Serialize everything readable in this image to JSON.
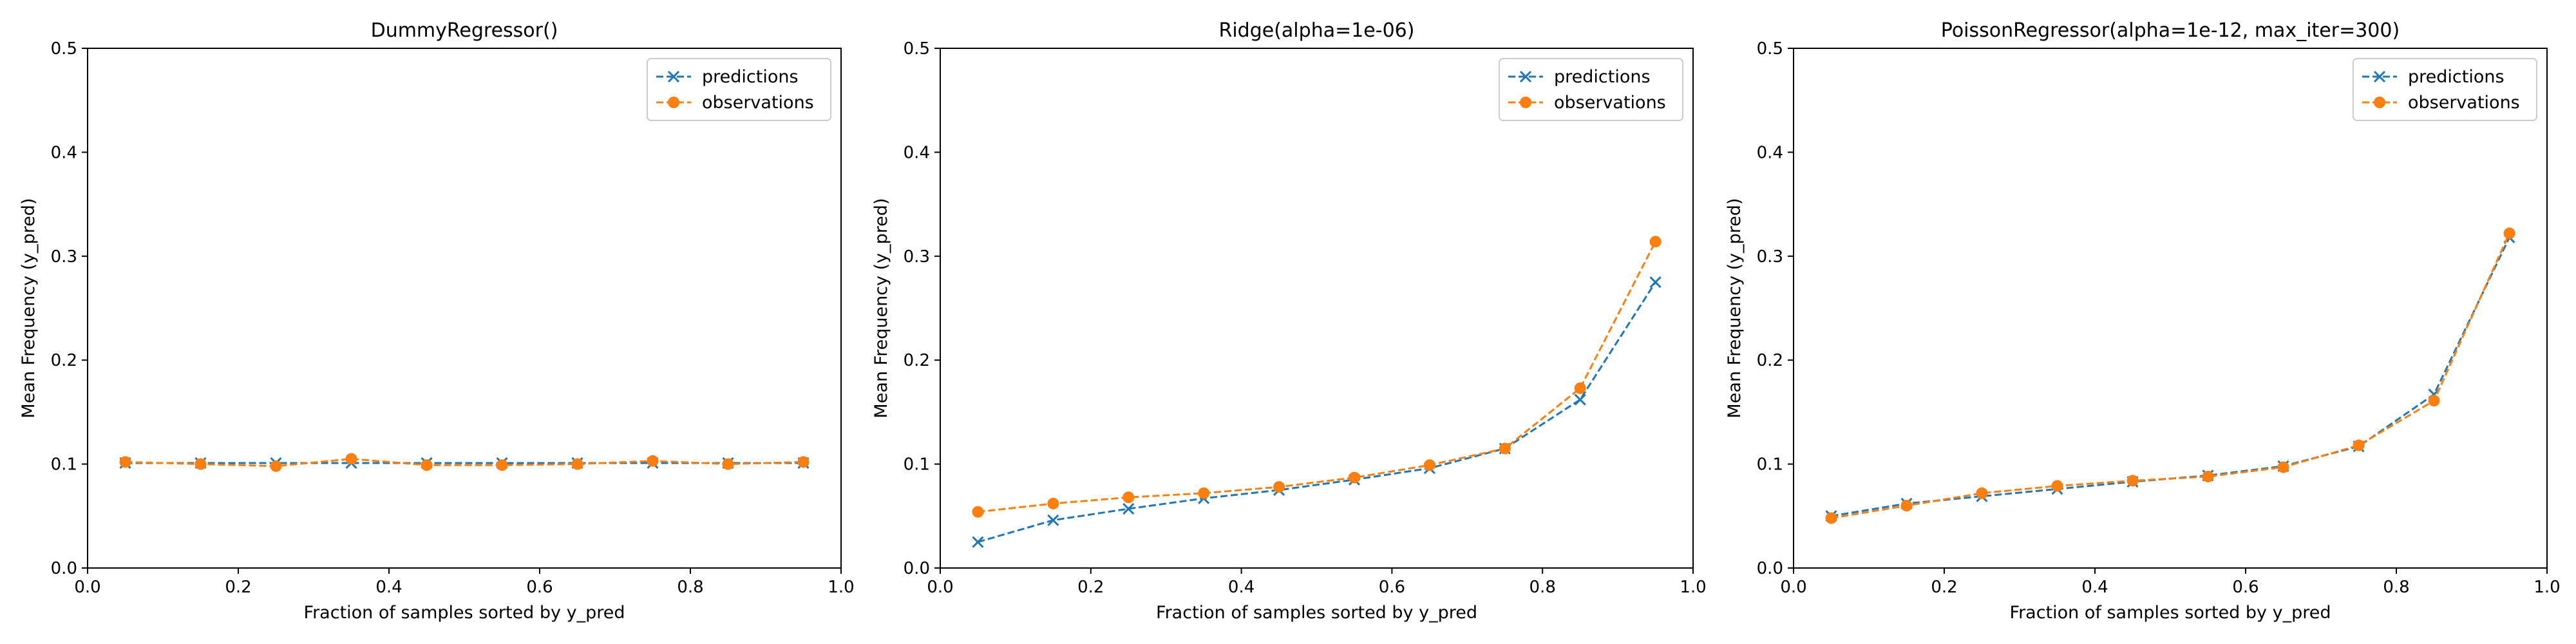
{
  "chart_data": [
    {
      "type": "line",
      "title": "DummyRegressor()",
      "xlabel": "Fraction of samples sorted by y_pred",
      "ylabel": "Mean Frequency (y_pred)",
      "xlim": [
        0.0,
        1.0
      ],
      "ylim": [
        0.0,
        0.5
      ],
      "xticks": [
        "0.0",
        "0.2",
        "0.4",
        "0.6",
        "0.8",
        "1.0"
      ],
      "yticks": [
        "0.0",
        "0.1",
        "0.2",
        "0.3",
        "0.4",
        "0.5"
      ],
      "legend_position": "top-right",
      "x": [
        0.05,
        0.15,
        0.25,
        0.35,
        0.45,
        0.55,
        0.65,
        0.75,
        0.85,
        0.95
      ],
      "series": [
        {
          "name": "predictions",
          "color": "#1f77b4",
          "marker": "x",
          "values": [
            0.101,
            0.101,
            0.101,
            0.101,
            0.101,
            0.101,
            0.101,
            0.101,
            0.101,
            0.101
          ]
        },
        {
          "name": "observations",
          "color": "#ff7f0e",
          "marker": "o",
          "values": [
            0.102,
            0.1,
            0.098,
            0.105,
            0.099,
            0.099,
            0.1,
            0.103,
            0.1,
            0.102
          ]
        }
      ]
    },
    {
      "type": "line",
      "title": "Ridge(alpha=1e-06)",
      "xlabel": "Fraction of samples sorted by y_pred",
      "ylabel": "Mean Frequency (y_pred)",
      "xlim": [
        0.0,
        1.0
      ],
      "ylim": [
        0.0,
        0.5
      ],
      "xticks": [
        "0.0",
        "0.2",
        "0.4",
        "0.6",
        "0.8",
        "1.0"
      ],
      "yticks": [
        "0.0",
        "0.1",
        "0.2",
        "0.3",
        "0.4",
        "0.5"
      ],
      "legend_position": "top-right",
      "x": [
        0.05,
        0.15,
        0.25,
        0.35,
        0.45,
        0.55,
        0.65,
        0.75,
        0.85,
        0.95
      ],
      "series": [
        {
          "name": "predictions",
          "color": "#1f77b4",
          "marker": "x",
          "values": [
            0.025,
            0.046,
            0.057,
            0.067,
            0.075,
            0.085,
            0.096,
            0.115,
            0.162,
            0.275
          ]
        },
        {
          "name": "observations",
          "color": "#ff7f0e",
          "marker": "o",
          "values": [
            0.054,
            0.062,
            0.068,
            0.072,
            0.078,
            0.087,
            0.099,
            0.115,
            0.173,
            0.314
          ]
        }
      ]
    },
    {
      "type": "line",
      "title": "PoissonRegressor(alpha=1e-12, max_iter=300)",
      "xlabel": "Fraction of samples sorted by y_pred",
      "ylabel": "Mean Frequency (y_pred)",
      "xlim": [
        0.0,
        1.0
      ],
      "ylim": [
        0.0,
        0.5
      ],
      "xticks": [
        "0.0",
        "0.2",
        "0.4",
        "0.6",
        "0.8",
        "1.0"
      ],
      "yticks": [
        "0.0",
        "0.1",
        "0.2",
        "0.3",
        "0.4",
        "0.5"
      ],
      "legend_position": "top-right",
      "x": [
        0.05,
        0.15,
        0.25,
        0.35,
        0.45,
        0.55,
        0.65,
        0.75,
        0.85,
        0.95
      ],
      "series": [
        {
          "name": "predictions",
          "color": "#1f77b4",
          "marker": "x",
          "values": [
            0.05,
            0.062,
            0.069,
            0.076,
            0.083,
            0.089,
            0.098,
            0.117,
            0.167,
            0.318
          ]
        },
        {
          "name": "observations",
          "color": "#ff7f0e",
          "marker": "o",
          "values": [
            0.048,
            0.06,
            0.072,
            0.079,
            0.084,
            0.088,
            0.097,
            0.118,
            0.161,
            0.322
          ]
        }
      ]
    }
  ]
}
